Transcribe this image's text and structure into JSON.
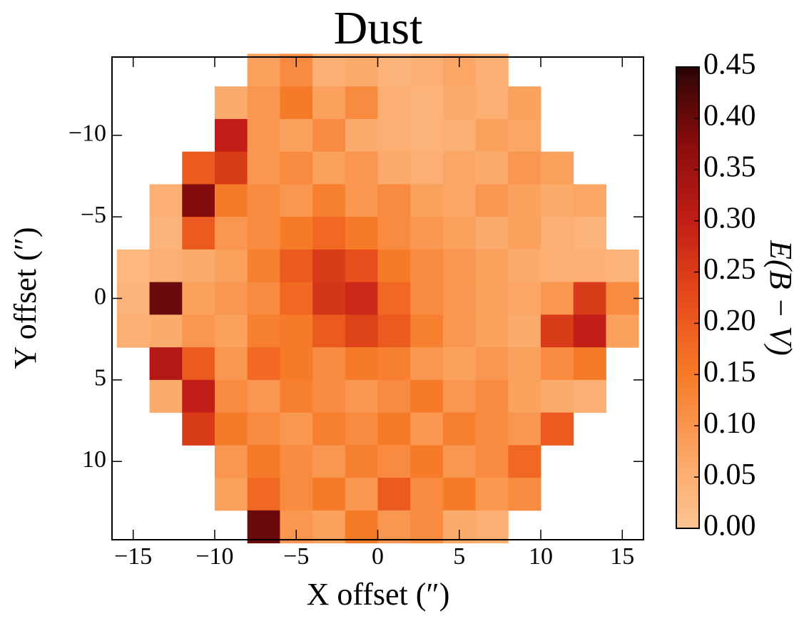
{
  "chart_data": {
    "type": "heatmap",
    "title": "Dust",
    "x_label": "X offset (″)",
    "y_label": "Y offset (″)",
    "colorbar_label": "E(B − V)",
    "x": [
      -15,
      -13,
      -11,
      -9,
      -7,
      -5,
      -3,
      -1,
      1,
      3,
      5,
      7,
      9,
      11,
      13,
      15
    ],
    "y": [
      -14,
      -12,
      -10,
      -8,
      -6,
      -4,
      -2,
      0,
      2,
      4,
      6,
      8,
      10,
      12,
      14
    ],
    "values": [
      [
        null,
        null,
        null,
        null,
        0.08,
        0.12,
        0.05,
        0.06,
        0.04,
        0.05,
        0.07,
        0.05,
        null,
        null,
        null,
        null
      ],
      [
        null,
        null,
        null,
        0.06,
        0.1,
        0.15,
        0.08,
        0.12,
        0.05,
        0.04,
        0.06,
        0.05,
        0.08,
        null,
        null,
        null
      ],
      [
        null,
        null,
        null,
        0.3,
        0.1,
        0.08,
        0.12,
        0.06,
        0.05,
        0.04,
        0.05,
        0.08,
        0.07,
        null,
        null,
        null
      ],
      [
        null,
        null,
        0.2,
        0.25,
        0.1,
        0.12,
        0.08,
        0.1,
        0.06,
        0.05,
        0.07,
        0.06,
        0.1,
        0.08,
        null,
        null
      ],
      [
        null,
        0.05,
        0.38,
        0.15,
        0.12,
        0.1,
        0.14,
        0.1,
        0.12,
        0.08,
        0.07,
        0.1,
        0.08,
        0.06,
        0.07,
        null
      ],
      [
        null,
        0.04,
        0.2,
        0.1,
        0.12,
        0.15,
        0.18,
        0.15,
        0.12,
        0.1,
        0.08,
        0.06,
        0.08,
        0.05,
        0.04,
        null
      ],
      [
        0.03,
        0.05,
        0.06,
        0.08,
        0.14,
        0.2,
        0.25,
        0.22,
        0.15,
        0.12,
        0.1,
        0.08,
        0.06,
        0.05,
        0.05,
        0.04
      ],
      [
        0.04,
        0.4,
        0.08,
        0.1,
        0.12,
        0.18,
        0.26,
        0.28,
        0.18,
        0.12,
        0.1,
        0.08,
        0.07,
        0.1,
        0.25,
        0.12
      ],
      [
        0.05,
        0.06,
        0.1,
        0.08,
        0.14,
        0.15,
        0.2,
        0.24,
        0.2,
        0.14,
        0.1,
        0.08,
        0.06,
        0.25,
        0.3,
        0.08
      ],
      [
        null,
        0.32,
        0.2,
        0.1,
        0.18,
        0.15,
        0.12,
        0.15,
        0.14,
        0.1,
        0.08,
        0.1,
        0.08,
        0.12,
        0.15,
        null
      ],
      [
        null,
        0.06,
        0.3,
        0.12,
        0.1,
        0.14,
        0.12,
        0.1,
        0.12,
        0.15,
        0.1,
        0.12,
        0.08,
        0.06,
        0.05,
        null
      ],
      [
        null,
        null,
        0.25,
        0.15,
        0.12,
        0.1,
        0.14,
        0.12,
        0.15,
        0.1,
        0.14,
        0.12,
        0.1,
        0.2,
        null,
        null
      ],
      [
        null,
        null,
        null,
        0.1,
        0.15,
        0.12,
        0.1,
        0.14,
        0.12,
        0.15,
        0.1,
        0.12,
        0.18,
        null,
        null,
        null
      ],
      [
        null,
        null,
        null,
        0.08,
        0.18,
        0.12,
        0.15,
        0.1,
        0.2,
        0.12,
        0.15,
        0.1,
        0.12,
        null,
        null,
        null
      ],
      [
        null,
        null,
        null,
        null,
        0.4,
        0.1,
        0.08,
        0.15,
        0.1,
        0.12,
        0.06,
        0.05,
        null,
        null,
        null,
        null
      ]
    ],
    "xlim": [
      -16.3,
      16.3
    ],
    "ylim": [
      14.8,
      -14.8
    ],
    "xticks": [
      {
        "value": -15,
        "label": "−15"
      },
      {
        "value": -10,
        "label": "−10"
      },
      {
        "value": -5,
        "label": "−5"
      },
      0,
      5,
      10,
      15
    ],
    "yticks": [
      {
        "value": -10,
        "label": "−10"
      },
      {
        "value": -5,
        "label": "−5"
      },
      0,
      5,
      10
    ],
    "clim": [
      0,
      0.45
    ],
    "cticks": [
      {
        "value": 0,
        "label": "0.00"
      },
      0.05,
      {
        "value": 0.1,
        "label": "0.10"
      },
      0.15,
      {
        "value": 0.2,
        "label": "0.20"
      },
      0.25,
      {
        "value": 0.3,
        "label": "0.30"
      },
      0.35,
      {
        "value": 0.4,
        "label": "0.40"
      },
      0.45
    ],
    "colormap": [
      "#fdc593",
      "#fba462",
      "#f67b28",
      "#e64b1a",
      "#c01e16",
      "#8a0d0d",
      "#2b0404"
    ]
  }
}
